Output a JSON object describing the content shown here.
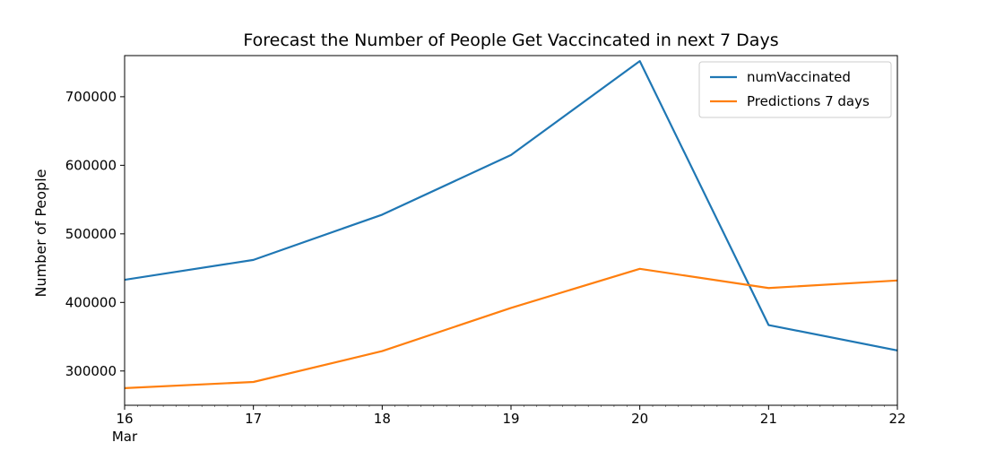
{
  "chart_data": {
    "type": "line",
    "title": "Forecast the Number of People Get Vaccincated in next 7 Days",
    "xlabel": "",
    "ylabel": "Number of People",
    "x": [
      "16",
      "17",
      "18",
      "19",
      "20",
      "21",
      "22"
    ],
    "x_sublabels": [
      "Mar",
      "",
      "",
      "",
      "",
      "",
      ""
    ],
    "xlim": [
      16,
      22
    ],
    "ylim": [
      250000,
      760000
    ],
    "yticks": [
      300000,
      400000,
      500000,
      600000,
      700000
    ],
    "grid": false,
    "legend_position": "top-right",
    "series": [
      {
        "name": "numVaccinated",
        "color": "#1f77b4",
        "values": [
          433000,
          462000,
          528000,
          615000,
          752000,
          367000,
          330000
        ]
      },
      {
        "name": "Predictions 7 days",
        "color": "#ff7f0e",
        "values": [
          275000,
          284000,
          329000,
          392000,
          449000,
          421000,
          432000
        ]
      }
    ]
  }
}
